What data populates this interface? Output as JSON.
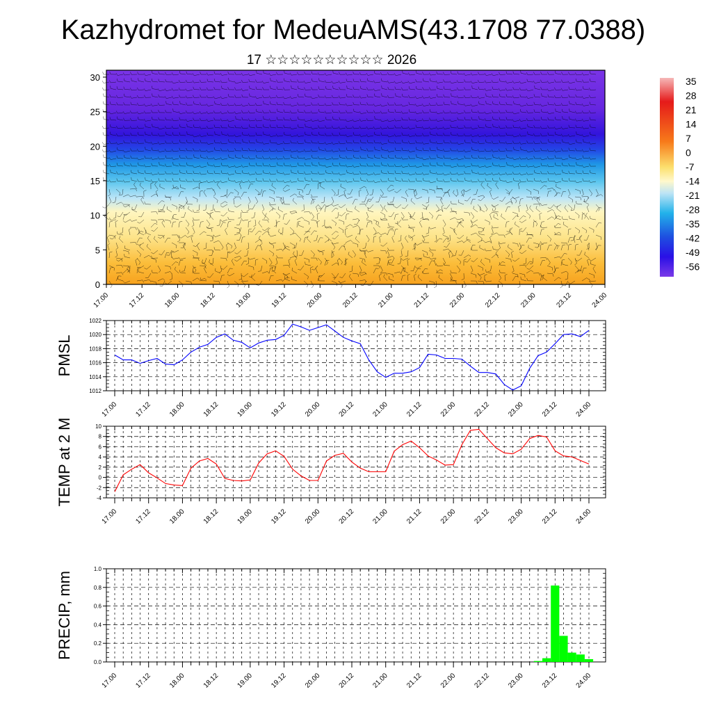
{
  "title": "Kazhydromet for MedeuAMS(43.1708 77.0388)",
  "subtitle": "17 ☆☆☆☆☆☆☆☆☆☆ 2026",
  "colors": {
    "pmsl_line": "#0000ff",
    "temp_line": "#ff0000",
    "precip_bar": "#00ff00",
    "grid": "#000000"
  },
  "chart_data": [
    {
      "type": "heatmap",
      "title": "",
      "ylabel": "",
      "ylim": [
        0,
        31
      ],
      "yticks": [
        0,
        5,
        10,
        15,
        20,
        25,
        30
      ],
      "x_ticks": [
        "17.00",
        "17.12",
        "18.00",
        "18.12",
        "19.00",
        "19.12",
        "20.00",
        "20.12",
        "21.00",
        "21.12",
        "22.00",
        "22.12",
        "23.00",
        "23.12",
        "24.00"
      ],
      "z_description_levels": [
        "35",
        "28",
        "21",
        "14",
        "7",
        "0",
        "-7",
        "-14",
        "-21",
        "-28",
        "-35",
        "-42",
        "-49",
        "-56"
      ],
      "colorbar_labels": [
        "35",
        "28",
        "21",
        "14",
        "7",
        "0",
        "-7",
        "-14",
        "-21",
        "-28",
        "-35",
        "-42",
        "-49",
        "-56"
      ],
      "overlay": "wind barbs"
    },
    {
      "type": "line",
      "name": "",
      "ylabel": "PMSL",
      "ylim": [
        1012,
        1022
      ],
      "yticks": [
        1012,
        1014,
        1016,
        1018,
        1020,
        1022
      ],
      "x_ticks": [
        "17.00",
        "17.12",
        "18.00",
        "18.12",
        "19.00",
        "19.12",
        "20.00",
        "20.12",
        "21.00",
        "21.12",
        "22.00",
        "22.12",
        "23.00",
        "23.12",
        "24.00"
      ],
      "x_step_hours": 3,
      "values": [
        1017.1,
        1016.4,
        1016.4,
        1015.9,
        1016.3,
        1016.6,
        1015.8,
        1015.7,
        1016.4,
        1017.5,
        1018.2,
        1018.6,
        1019.6,
        1020.1,
        1019.2,
        1018.9,
        1018.1,
        1018.8,
        1019.2,
        1019.3,
        1019.9,
        1021.5,
        1021.1,
        1020.6,
        1021.0,
        1021.4,
        1020.5,
        1019.6,
        1019.1,
        1018.7,
        1016.4,
        1014.7,
        1013.9,
        1014.5,
        1014.5,
        1014.7,
        1015.3,
        1017.2,
        1017.1,
        1016.6,
        1016.6,
        1016.5,
        1015.5,
        1014.6,
        1014.6,
        1014.4,
        1012.9,
        1012.1,
        1012.7,
        1015.2,
        1017.0,
        1017.5,
        1018.7,
        1020.0,
        1020.1,
        1019.7,
        1020.6
      ]
    },
    {
      "type": "line",
      "name": "",
      "ylabel": "TEMP at 2 M",
      "ylim": [
        -4,
        10
      ],
      "yticks": [
        -4,
        -2,
        0,
        2,
        4,
        6,
        8,
        10
      ],
      "x_ticks": [
        "17.00",
        "17.12",
        "18.00",
        "18.12",
        "19.00",
        "19.12",
        "20.00",
        "20.12",
        "21.00",
        "21.12",
        "22.00",
        "22.12",
        "23.00",
        "23.12",
        "24.00"
      ],
      "x_step_hours": 3,
      "values": [
        -2.8,
        0.5,
        1.6,
        2.5,
        0.9,
        -0.1,
        -1.2,
        -1.5,
        -1.6,
        1.8,
        3.2,
        3.7,
        2.6,
        -0.2,
        -0.6,
        -0.7,
        -0.5,
        2.8,
        4.6,
        5.2,
        4.1,
        1.6,
        0.3,
        -0.6,
        -0.6,
        3.2,
        4.3,
        4.7,
        3.0,
        1.8,
        1.1,
        1.1,
        1.1,
        5.1,
        6.4,
        7.1,
        5.8,
        4.2,
        3.4,
        2.4,
        2.5,
        6.4,
        9.2,
        9.4,
        7.6,
        5.8,
        4.8,
        4.6,
        5.5,
        7.6,
        8.2,
        7.9,
        5.2,
        4.2,
        4.0,
        3.3,
        2.6
      ]
    },
    {
      "type": "bar",
      "name": "",
      "ylabel": "PRECIP, mm",
      "ylim": [
        0,
        1.0
      ],
      "yticks": [
        "0.0",
        "0.2",
        "0.4",
        "0.6",
        "0.8",
        "1.0"
      ],
      "x_ticks": [
        "17.00",
        "17.12",
        "18.00",
        "18.12",
        "19.00",
        "19.12",
        "20.00",
        "20.12",
        "21.00",
        "21.12",
        "22.00",
        "22.12",
        "23.00",
        "23.12",
        "24.00"
      ],
      "x_step_hours": 3,
      "values": [
        0,
        0,
        0,
        0,
        0,
        0,
        0,
        0,
        0,
        0,
        0,
        0,
        0,
        0,
        0,
        0,
        0,
        0,
        0,
        0,
        0,
        0,
        0,
        0,
        0,
        0,
        0,
        0,
        0,
        0,
        0,
        0,
        0,
        0,
        0,
        0,
        0,
        0,
        0,
        0,
        0,
        0,
        0,
        0,
        0,
        0,
        0,
        0,
        0,
        0,
        0.01,
        0.04,
        0.82,
        0.28,
        0.1,
        0.08,
        0.03
      ]
    }
  ]
}
